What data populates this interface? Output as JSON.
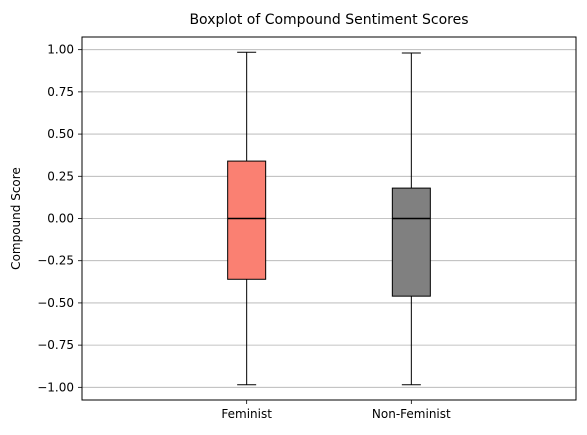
{
  "chart_data": {
    "type": "box",
    "title": "Boxplot of Compound Sentiment Scores",
    "xlabel": "",
    "ylabel": "Compound Score",
    "ylim": [
      -1.075,
      1.075
    ],
    "yticks": [
      -1.0,
      -0.75,
      -0.5,
      -0.25,
      0.0,
      0.25,
      0.5,
      0.75,
      1.0
    ],
    "ytick_labels": [
      "−1.00",
      "−0.75",
      "−0.50",
      "−0.25",
      "0.00",
      "0.25",
      "0.50",
      "0.75",
      "1.00"
    ],
    "grid": "y",
    "legend": "none",
    "categories": [
      "Feminist",
      "Non-Feminist"
    ],
    "boxes": [
      {
        "category": "Feminist",
        "whisker_low": -0.985,
        "q1": -0.36,
        "median": 0.0,
        "q3": 0.34,
        "whisker_high": 0.985,
        "color": "#fa8072"
      },
      {
        "category": "Non-Feminist",
        "whisker_low": -0.985,
        "q1": -0.46,
        "median": 0.0,
        "q3": 0.18,
        "whisker_high": 0.98,
        "color": "#808080"
      }
    ]
  }
}
